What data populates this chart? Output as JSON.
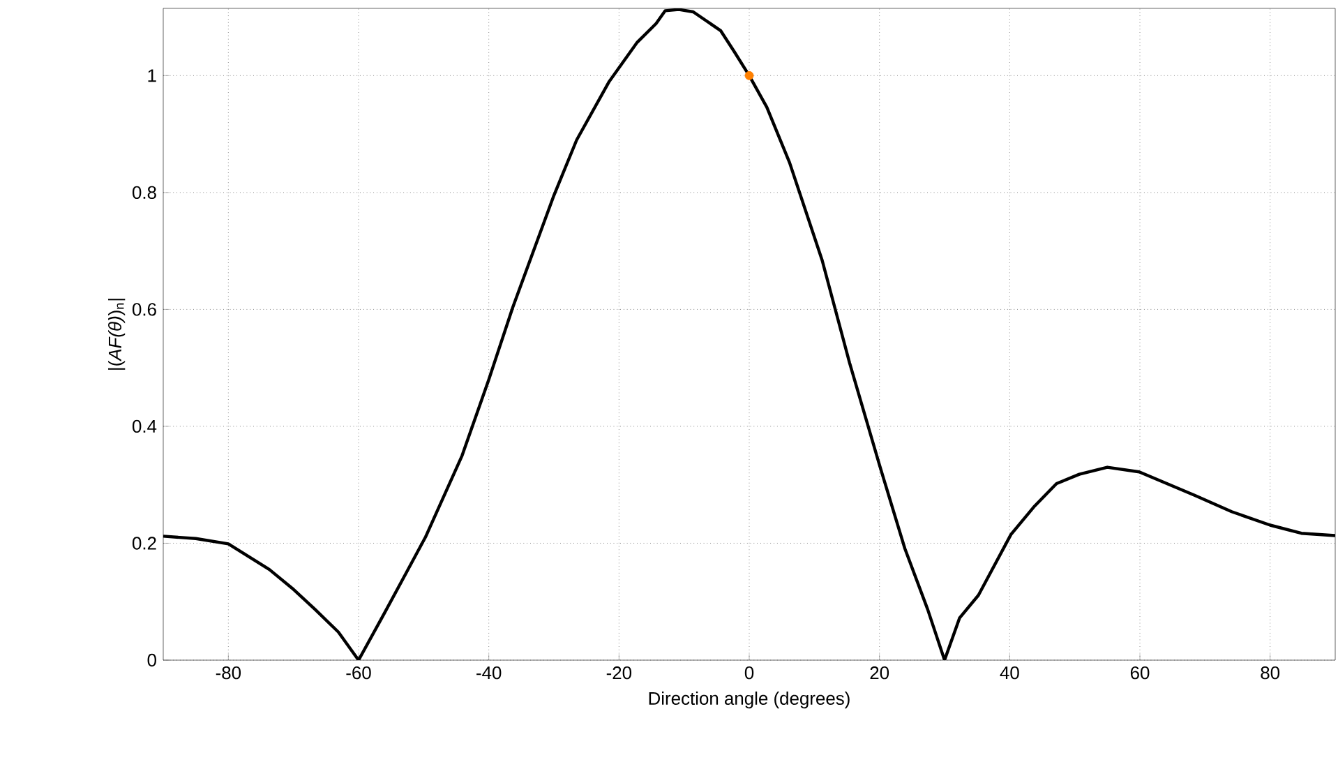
{
  "chart_data": {
    "type": "line",
    "xlabel": "Direction angle (degrees)",
    "ylabel": "|(*AF(θ)*)$_{n}$|",
    "xlim": [
      -90,
      90
    ],
    "ylim": [
      0,
      1.115
    ],
    "xticks": [
      -80,
      -60,
      -40,
      -20,
      0,
      20,
      40,
      60,
      80
    ],
    "yticks": [
      0,
      0.2,
      0.4,
      0.6,
      0.8,
      1
    ],
    "grid": true,
    "marker": "none",
    "line_style": "solid",
    "series": [
      {
        "color": "#000000",
        "x": [
          -90,
          -85,
          -80,
          -73.7,
          -70.2,
          -66.7,
          -63.1,
          -60,
          -56.1,
          -52.6,
          -49.7,
          -44.1,
          -40,
          -36.3,
          -30,
          -26.5,
          -21.5,
          -17.2,
          -14.3,
          -12.9,
          -10.8,
          -8.6,
          -4.4,
          -2.3,
          0,
          2.7,
          6.2,
          11.2,
          15.4,
          20,
          23.9,
          27.4,
          30,
          32.3,
          35.2,
          40.2,
          43.7,
          47.2,
          50.7,
          55,
          59.9,
          68.4,
          74.1,
          80,
          84.8,
          90
        ],
        "values": [
          0.212,
          0.208,
          0.199,
          0.155,
          0.123,
          0.087,
          0.048,
          0,
          0.079,
          0.151,
          0.211,
          0.35,
          0.48,
          0.604,
          0.795,
          0.89,
          0.99,
          1.057,
          1.089,
          1.111,
          1.113,
          1.109,
          1.077,
          1.041,
          1.0,
          0.946,
          0.851,
          0.684,
          0.509,
          0.334,
          0.191,
          0.087,
          0,
          0.072,
          0.111,
          0.215,
          0.262,
          0.302,
          0.318,
          0.33,
          0.322,
          0.282,
          0.254,
          0.231,
          0.217,
          0.213
        ]
      },
      {
        "type": "scatter",
        "marker": "circle",
        "color": "#ff8000",
        "x": [
          0
        ],
        "values": [
          1
        ]
      }
    ]
  }
}
